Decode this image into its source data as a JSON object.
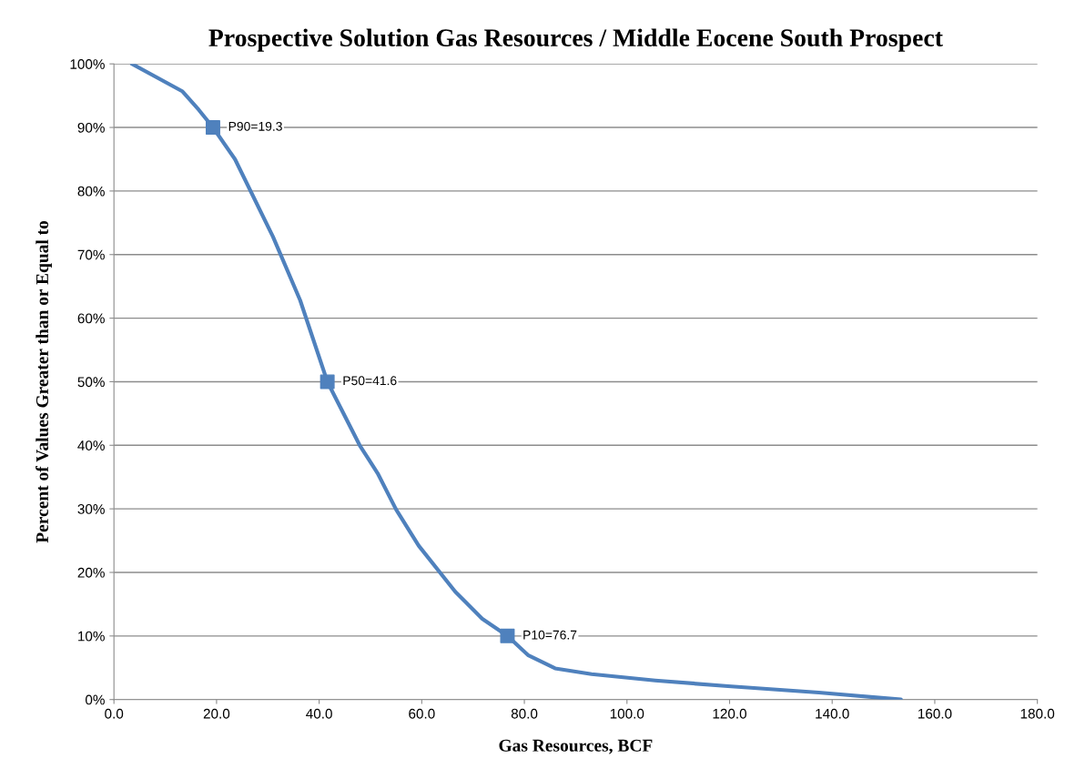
{
  "chart_data": {
    "type": "line",
    "title": "Prospective Solution Gas Resources / Middle Eocene South Prospect",
    "xlabel": "Gas Resources, BCF",
    "ylabel": "Percent of Values Greater than or Equal to",
    "series": [
      {
        "color": "#4f81bd",
        "marker": "none",
        "x": [
          3.5,
          13.3,
          16.5,
          19.3,
          23.6,
          31,
          36.3,
          41.6,
          47.9,
          51.4,
          55,
          59.4,
          66.5,
          71.8,
          76.7,
          80.7,
          86,
          93.1,
          105.5,
          119.7,
          137.4,
          153.4
        ],
        "values": [
          100,
          95.7,
          92.8,
          90,
          85,
          72.8,
          62.8,
          50,
          40,
          35.6,
          29.9,
          24.2,
          17,
          12.7,
          10,
          7,
          4.9,
          4,
          3,
          2.1,
          1.1,
          0
        ]
      },
      {
        "type": "scatter",
        "color": "#4f81bd",
        "marker": "square",
        "x": [
          19.3,
          41.6,
          76.7
        ],
        "values": [
          90,
          50,
          10
        ]
      }
    ],
    "annotations": [
      {
        "text": "P90=19.3",
        "x": 19.3,
        "y": 90
      },
      {
        "text": "P50=41.6",
        "x": 41.6,
        "y": 50
      },
      {
        "text": "P10=76.7",
        "x": 76.7,
        "y": 10
      }
    ],
    "xlim": [
      0,
      180
    ],
    "xticks": [
      {
        "value": 0,
        "label": "0.0"
      },
      {
        "value": 20,
        "label": "20.0"
      },
      {
        "value": 40,
        "label": "40.0"
      },
      {
        "value": 60,
        "label": "60.0"
      },
      {
        "value": 80,
        "label": "80.0"
      },
      {
        "value": 100,
        "label": "100.0"
      },
      {
        "value": 120,
        "label": "120.0"
      },
      {
        "value": 140,
        "label": "140.0"
      },
      {
        "value": 160,
        "label": "160.0"
      },
      {
        "value": 180,
        "label": "180.0"
      }
    ],
    "ylim": [
      0,
      100
    ],
    "yticks": [
      {
        "value": 0,
        "label": "0%"
      },
      {
        "value": 10,
        "label": "10%"
      },
      {
        "value": 20,
        "label": "20%"
      },
      {
        "value": 30,
        "label": "30%"
      },
      {
        "value": 40,
        "label": "40%"
      },
      {
        "value": 50,
        "label": "50%"
      },
      {
        "value": 60,
        "label": "60%"
      },
      {
        "value": 70,
        "label": "70%"
      },
      {
        "value": 80,
        "label": "80%"
      },
      {
        "value": 90,
        "label": "90%"
      },
      {
        "value": 100,
        "label": "100%"
      }
    ],
    "grid": "y"
  }
}
